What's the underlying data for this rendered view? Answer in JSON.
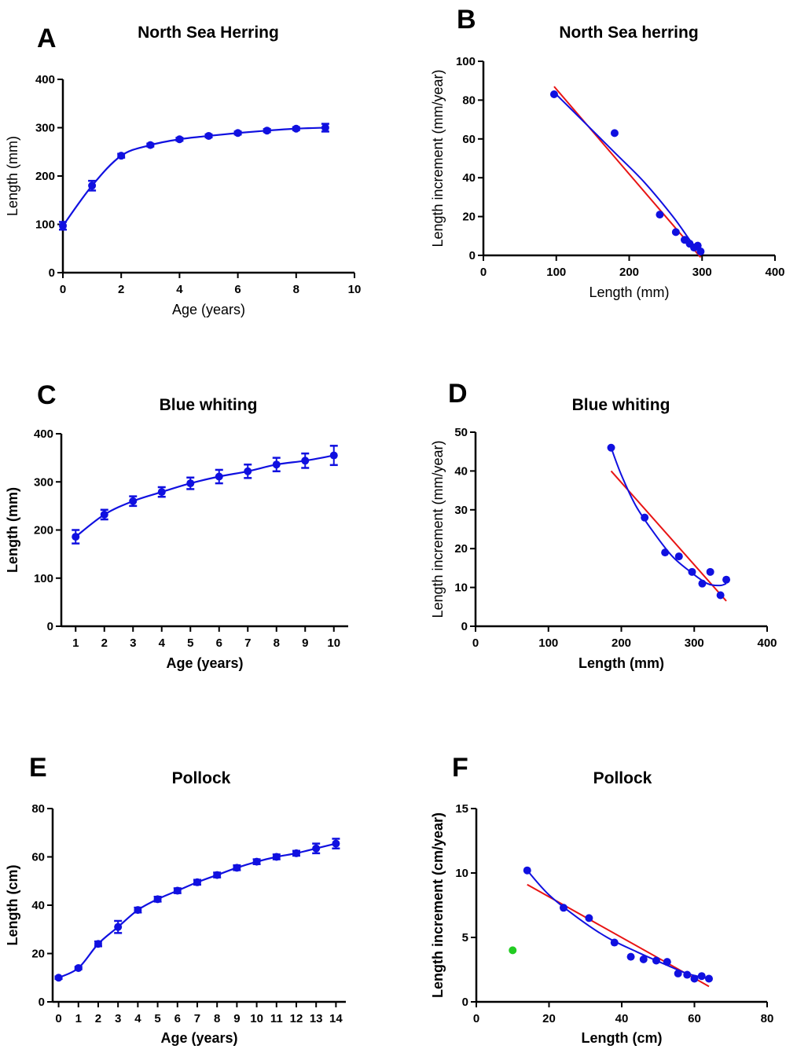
{
  "colors": {
    "series": "#1010e0",
    "fit": "#e81414",
    "outlier": "#22cc22",
    "axis": "#000000"
  },
  "panels": [
    {
      "letter": "A",
      "title": "North Sea Herring"
    },
    {
      "letter": "B",
      "title": "North Sea herring"
    },
    {
      "letter": "C",
      "title": "Blue whiting"
    },
    {
      "letter": "D",
      "title": "Blue whiting"
    },
    {
      "letter": "E",
      "title": "Pollock"
    },
    {
      "letter": "F",
      "title": "Pollock"
    }
  ],
  "chart_data": [
    {
      "panel": "A",
      "type": "line",
      "title": "North Sea Herring",
      "xlabel": "Age (years)",
      "ylabel": "Length (mm)",
      "xlim": [
        0,
        10
      ],
      "ylim": [
        0,
        400
      ],
      "xticks": [
        0,
        2,
        4,
        6,
        8,
        10
      ],
      "yticks": [
        0,
        100,
        200,
        300,
        400
      ],
      "series": [
        {
          "x": [
            0,
            1,
            2,
            3,
            4,
            5,
            6,
            7,
            8,
            9
          ],
          "y": [
            97,
            180,
            242,
            264,
            276,
            283,
            289,
            294,
            298,
            300
          ],
          "err": [
            8,
            10,
            4,
            3,
            3,
            3,
            3,
            3,
            3,
            8
          ]
        }
      ]
    },
    {
      "panel": "B",
      "type": "scatter",
      "title": "North Sea herring",
      "xlabel": "Length (mm)",
      "ylabel": "Length increment (mm/year)",
      "xlim": [
        0,
        400
      ],
      "ylim": [
        0,
        100
      ],
      "xticks": [
        0,
        100,
        200,
        300,
        400
      ],
      "yticks": [
        0,
        20,
        40,
        60,
        80,
        100
      ],
      "points": {
        "x": [
          97,
          180,
          242,
          264,
          276,
          283,
          289,
          294,
          298
        ],
        "y": [
          83,
          63,
          21,
          12,
          8,
          6,
          4,
          5,
          2
        ]
      },
      "fit_line": {
        "x": [
          97,
          298
        ],
        "y": [
          87,
          -1
        ]
      },
      "fit_curve": {
        "x": [
          97,
          140,
          180,
          220,
          260,
          285,
          298
        ],
        "y": [
          84,
          68,
          53,
          38,
          20,
          7,
          2
        ]
      }
    },
    {
      "panel": "C",
      "type": "line",
      "title": "Blue whiting",
      "xlabel": "Age (years)",
      "ylabel": "Length (mm)",
      "xlim": [
        0.5,
        10.5
      ],
      "ylim": [
        0,
        400
      ],
      "xticks": [
        1,
        2,
        3,
        4,
        5,
        6,
        7,
        8,
        9,
        10
      ],
      "yticks": [
        0,
        100,
        200,
        300,
        400
      ],
      "series": [
        {
          "x": [
            1,
            2,
            3,
            4,
            5,
            6,
            7,
            8,
            9,
            10
          ],
          "y": [
            186,
            232,
            260,
            279,
            297,
            311,
            322,
            336,
            344,
            355
          ],
          "err": [
            14,
            10,
            10,
            10,
            12,
            14,
            14,
            14,
            15,
            20
          ]
        }
      ]
    },
    {
      "panel": "D",
      "type": "scatter",
      "title": "Blue whiting",
      "xlabel": "Length (mm)",
      "ylabel": "Length increment (mm/year)",
      "xlim": [
        0,
        400
      ],
      "ylim": [
        0,
        50
      ],
      "xticks": [
        0,
        100,
        200,
        300,
        400
      ],
      "yticks": [
        0,
        10,
        20,
        30,
        40,
        50
      ],
      "points": {
        "x": [
          186,
          232,
          260,
          279,
          297,
          311,
          322,
          336,
          344
        ],
        "y": [
          46,
          28,
          19,
          18,
          14,
          11,
          14,
          8,
          12
        ]
      },
      "fit_line": {
        "x": [
          186,
          344
        ],
        "y": [
          40,
          6.5
        ]
      },
      "fit_curve": {
        "x": [
          186,
          200,
          220,
          245,
          270,
          295,
          318,
          335,
          344
        ],
        "y": [
          46,
          39,
          31,
          24,
          18,
          14,
          11,
          10.5,
          11
        ]
      }
    },
    {
      "panel": "E",
      "type": "line",
      "title": "Pollock",
      "xlabel": "Age (years)",
      "ylabel": "Length (cm)",
      "xlim": [
        -0.3,
        14.5
      ],
      "ylim": [
        0,
        80
      ],
      "xticks": [
        0,
        1,
        2,
        3,
        4,
        5,
        6,
        7,
        8,
        9,
        10,
        11,
        12,
        13,
        14
      ],
      "yticks": [
        0,
        20,
        40,
        60,
        80
      ],
      "series": [
        {
          "x": [
            0,
            1,
            2,
            3,
            4,
            5,
            6,
            7,
            8,
            9,
            10,
            11,
            12,
            13,
            14
          ],
          "y": [
            10,
            14,
            24,
            31,
            38,
            42.5,
            46,
            49.5,
            52.5,
            55.5,
            58,
            60,
            61.5,
            63.5,
            65.5
          ],
          "err": [
            0.5,
            0.5,
            1,
            2.5,
            1,
            1,
            1,
            1,
            1,
            1,
            1,
            1,
            1,
            2,
            2
          ]
        }
      ]
    },
    {
      "panel": "F",
      "type": "scatter",
      "title": "Pollock",
      "xlabel": "Length (cm)",
      "ylabel": "Length increment (cm/year)",
      "xlim": [
        0,
        80
      ],
      "ylim": [
        0,
        15
      ],
      "xticks": [
        0,
        20,
        40,
        60,
        80
      ],
      "yticks": [
        0,
        5,
        10,
        15
      ],
      "points": {
        "x": [
          14,
          24,
          31,
          38,
          42.5,
          46,
          49.5,
          52.5,
          55.5,
          58,
          60,
          62,
          64
        ],
        "y": [
          10.2,
          7.3,
          6.5,
          4.6,
          3.5,
          3.3,
          3.2,
          3.1,
          2.2,
          2.1,
          1.8,
          2.0,
          1.8
        ]
      },
      "outlier": {
        "x": [
          10
        ],
        "y": [
          4
        ]
      },
      "fit_line": {
        "x": [
          14,
          64
        ],
        "y": [
          9.1,
          1.2
        ]
      },
      "fit_curve": {
        "x": [
          14,
          20,
          28,
          36,
          44,
          52,
          58,
          64
        ],
        "y": [
          10.2,
          8.3,
          6.5,
          5.0,
          3.9,
          2.9,
          2.2,
          1.8
        ]
      }
    }
  ]
}
